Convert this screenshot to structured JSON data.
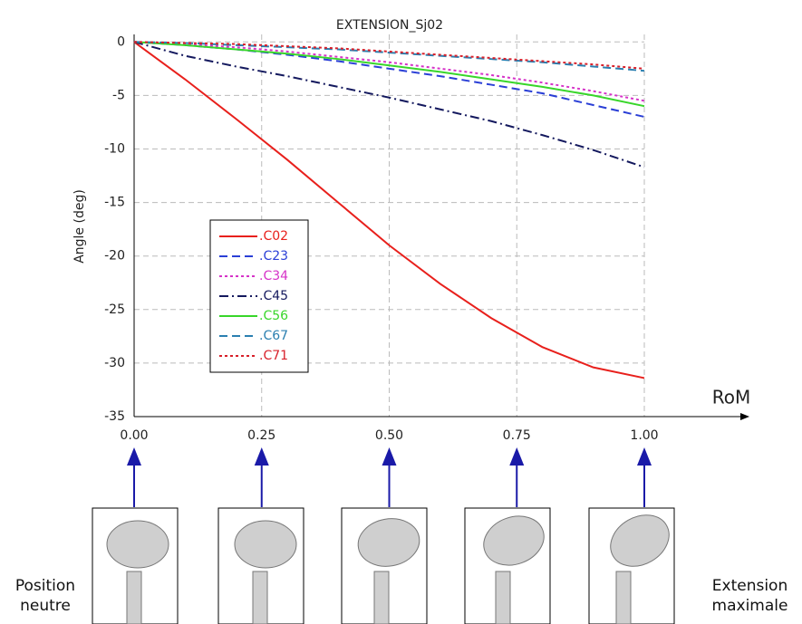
{
  "chart_data": {
    "type": "line",
    "title": "EXTENSION_Sj02",
    "y_label": "Angle (deg)",
    "x_label": "RoM",
    "x": [
      0,
      0.1,
      0.2,
      0.3,
      0.4,
      0.5,
      0.6,
      0.7,
      0.8,
      0.9,
      1
    ],
    "xlim": [
      0,
      1
    ],
    "xticks": [
      {
        "value": 0,
        "label": "0.00"
      },
      {
        "value": 0.25,
        "label": "0.25"
      },
      {
        "value": 0.5,
        "label": "0.50"
      },
      {
        "value": 0.75,
        "label": "0.75"
      },
      {
        "value": 1,
        "label": "1.00"
      }
    ],
    "ylim": [
      -35,
      0.7
    ],
    "yticks": [
      0,
      -5,
      -10,
      -15,
      -20,
      -25,
      -30,
      -35
    ],
    "grid": true,
    "series": [
      {
        "name": ".C02",
        "color": "#e8201c",
        "dash": "solid",
        "values": [
          0,
          -3.5,
          -7.2,
          -11,
          -15,
          -19,
          -22.6,
          -25.8,
          -28.5,
          -30.4,
          -31.4
        ]
      },
      {
        "name": ".C23",
        "color": "#2a3fd6",
        "dash": "dashed",
        "values": [
          0,
          -0.3,
          -0.7,
          -1.2,
          -1.8,
          -2.5,
          -3.2,
          -4,
          -4.8,
          -5.9,
          -7
        ]
      },
      {
        "name": ".C34",
        "color": "#d633c8",
        "dash": "dotted",
        "values": [
          0,
          -0.2,
          -0.5,
          -0.9,
          -1.4,
          -1.9,
          -2.5,
          -3.1,
          -3.8,
          -4.6,
          -5.5
        ]
      },
      {
        "name": ".C45",
        "color": "#14195e",
        "dash": "dashdot",
        "values": [
          0,
          -1.3,
          -2.3,
          -3.2,
          -4.2,
          -5.2,
          -6.3,
          -7.4,
          -8.7,
          -10.1,
          -11.7
        ]
      },
      {
        "name": ".C56",
        "color": "#38d62a",
        "dash": "solid",
        "values": [
          0,
          -0.3,
          -0.7,
          -1.1,
          -1.6,
          -2.2,
          -2.8,
          -3.5,
          -4.2,
          -5,
          -6
        ]
      },
      {
        "name": ".C67",
        "color": "#2a7fb0",
        "dash": "dashed",
        "values": [
          0,
          -0.1,
          -0.3,
          -0.5,
          -0.7,
          -1,
          -1.3,
          -1.6,
          -1.9,
          -2.3,
          -2.7
        ]
      },
      {
        "name": ".C71",
        "color": "#d8202a",
        "dash": "dotted",
        "values": [
          0,
          -0.1,
          -0.2,
          -0.4,
          -0.6,
          -0.9,
          -1.2,
          -1.5,
          -1.8,
          -2.1,
          -2.5
        ]
      }
    ]
  },
  "annotations": [
    "Position neutre",
    "Extension maximale"
  ]
}
